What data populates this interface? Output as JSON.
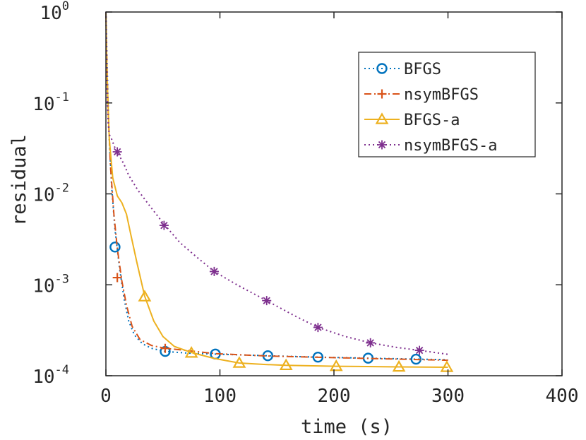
{
  "chart_data": {
    "type": "line",
    "title": "",
    "xlabel": "time (s)",
    "ylabel": "residual",
    "xlim": [
      0,
      400
    ],
    "ylim": [
      0.0001,
      1
    ],
    "yscale": "log",
    "grid": false,
    "legend_position": "top-right",
    "x_ticks": [
      {
        "value": 0,
        "label": "0"
      },
      {
        "value": 100,
        "label": "100"
      },
      {
        "value": 200,
        "label": "200"
      },
      {
        "value": 300,
        "label": "300"
      },
      {
        "value": 400,
        "label": "400"
      }
    ],
    "y_ticks": [
      {
        "value": 1,
        "base": "10",
        "exp": "0"
      },
      {
        "value": 0.1,
        "base": "10",
        "exp": "-1"
      },
      {
        "value": 0.01,
        "base": "10",
        "exp": "-2"
      },
      {
        "value": 0.001,
        "base": "10",
        "exp": "-3"
      },
      {
        "value": 0.0001,
        "base": "10",
        "exp": "-4"
      }
    ],
    "series": [
      {
        "name": "BFGS",
        "color": "#0072BD",
        "line_style": "dotted",
        "marker": "circle",
        "line": [
          [
            0,
            1
          ],
          [
            1,
            0.3
          ],
          [
            2,
            0.1
          ],
          [
            3,
            0.04
          ],
          [
            5,
            0.012
          ],
          [
            8,
            0.004
          ],
          [
            12,
            0.0015
          ],
          [
            16,
            0.0007
          ],
          [
            20,
            0.0004
          ],
          [
            25,
            0.00028
          ],
          [
            32,
            0.000225
          ],
          [
            40,
            0.0002
          ],
          [
            52,
            0.000185
          ],
          [
            70,
            0.000178
          ],
          [
            96,
            0.000173
          ],
          [
            142,
            0.000166
          ],
          [
            186,
            0.00016
          ],
          [
            230,
            0.000156
          ],
          [
            275,
            0.000152
          ],
          [
            300,
            0.00015
          ]
        ],
        "markers": [
          [
            8,
            0.0026
          ],
          [
            52,
            0.000185
          ],
          [
            96,
            0.000173
          ],
          [
            142,
            0.000166
          ],
          [
            186,
            0.00016
          ],
          [
            230,
            0.000156
          ],
          [
            272,
            0.000152
          ]
        ]
      },
      {
        "name": "nsymBFGS",
        "color": "#D95319",
        "line_style": "dashdot",
        "marker": "plus",
        "line": [
          [
            0,
            1
          ],
          [
            1,
            0.25
          ],
          [
            2,
            0.08
          ],
          [
            4,
            0.02
          ],
          [
            7,
            0.006
          ],
          [
            10,
            0.0025
          ],
          [
            14,
            0.0011
          ],
          [
            18,
            0.0006
          ],
          [
            23,
            0.00035
          ],
          [
            30,
            0.00025
          ],
          [
            40,
            0.000215
          ],
          [
            52,
            0.0002
          ],
          [
            70,
            0.00019
          ],
          [
            96,
            0.000175
          ],
          [
            140,
            0.000165
          ],
          [
            200,
            0.000158
          ],
          [
            300,
            0.000148
          ]
        ],
        "markers": [
          [
            10,
            0.0012
          ],
          [
            52,
            0.0002
          ]
        ]
      },
      {
        "name": "BFGS-a",
        "color": "#EDB120",
        "line_style": "solid",
        "marker": "triangle",
        "line": [
          [
            0,
            1
          ],
          [
            1,
            0.2
          ],
          [
            3,
            0.04
          ],
          [
            6,
            0.015
          ],
          [
            10,
            0.0095
          ],
          [
            14,
            0.008
          ],
          [
            18,
            0.006
          ],
          [
            22,
            0.0035
          ],
          [
            27,
            0.0018
          ],
          [
            34,
            0.00075
          ],
          [
            42,
            0.0004
          ],
          [
            50,
            0.00027
          ],
          [
            60,
            0.00021
          ],
          [
            75,
            0.00018
          ],
          [
            95,
            0.000155
          ],
          [
            117,
            0.000138
          ],
          [
            140,
            0.000133
          ],
          [
            158,
            0.00013
          ],
          [
            202,
            0.000127
          ],
          [
            257,
            0.000125
          ],
          [
            300,
            0.000124
          ]
        ],
        "markers": [
          [
            34,
            0.00074
          ],
          [
            75,
            0.000178
          ],
          [
            117,
            0.000138
          ],
          [
            158,
            0.00013
          ],
          [
            202,
            0.000127
          ],
          [
            257,
            0.000125
          ],
          [
            299,
            0.000124
          ]
        ]
      },
      {
        "name": "nsymBFGS-a",
        "color": "#7E2F8E",
        "line_style": "dotted",
        "marker": "asterisk",
        "line": [
          [
            0,
            1
          ],
          [
            1,
            0.15
          ],
          [
            2,
            0.06
          ],
          [
            3,
            0.045
          ],
          [
            5,
            0.04
          ],
          [
            8,
            0.032
          ],
          [
            12,
            0.026
          ],
          [
            16,
            0.021
          ],
          [
            20,
            0.016
          ],
          [
            28,
            0.011
          ],
          [
            38,
            0.0075
          ],
          [
            50,
            0.0048
          ],
          [
            65,
            0.0029
          ],
          [
            80,
            0.002
          ],
          [
            95,
            0.0014
          ],
          [
            115,
            0.001
          ],
          [
            140,
            0.00068
          ],
          [
            165,
            0.00046
          ],
          [
            186,
            0.00034
          ],
          [
            210,
            0.00027
          ],
          [
            232,
            0.00023
          ],
          [
            255,
            0.000205
          ],
          [
            275,
            0.00019
          ],
          [
            300,
            0.000172
          ]
        ],
        "markers": [
          [
            10,
            0.029
          ],
          [
            51,
            0.0045
          ],
          [
            95,
            0.0014
          ],
          [
            141,
            0.00067
          ],
          [
            186,
            0.00034
          ],
          [
            232,
            0.00023
          ],
          [
            275,
            0.00019
          ]
        ]
      }
    ]
  }
}
